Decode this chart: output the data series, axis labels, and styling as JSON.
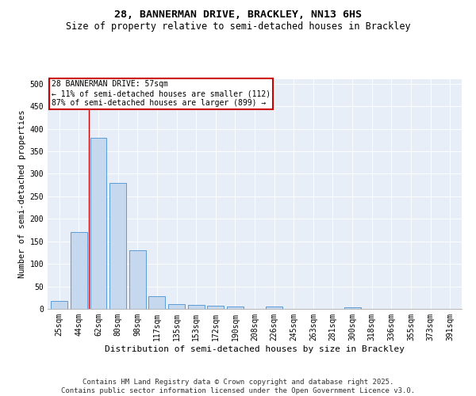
{
  "title": "28, BANNERMAN DRIVE, BRACKLEY, NN13 6HS",
  "subtitle": "Size of property relative to semi-detached houses in Brackley",
  "xlabel": "Distribution of semi-detached houses by size in Brackley",
  "ylabel": "Number of semi-detached properties",
  "categories": [
    "25sqm",
    "44sqm",
    "62sqm",
    "80sqm",
    "98sqm",
    "117sqm",
    "135sqm",
    "153sqm",
    "172sqm",
    "190sqm",
    "208sqm",
    "226sqm",
    "245sqm",
    "263sqm",
    "281sqm",
    "300sqm",
    "318sqm",
    "336sqm",
    "355sqm",
    "373sqm",
    "391sqm"
  ],
  "values": [
    17,
    170,
    380,
    280,
    130,
    28,
    10,
    9,
    7,
    6,
    0,
    6,
    0,
    0,
    0,
    3,
    0,
    0,
    0,
    0,
    0
  ],
  "bar_color": "#c5d8ed",
  "bar_edge_color": "#5b9bd5",
  "red_line_x": 1.5,
  "annotation_title": "28 BANNERMAN DRIVE: 57sqm",
  "annotation_line1": "← 11% of semi-detached houses are smaller (112)",
  "annotation_line2": "87% of semi-detached houses are larger (899) →",
  "annotation_box_facecolor": "#ffffff",
  "annotation_box_edgecolor": "#cc0000",
  "red_line_color": "#cc0000",
  "plot_bg_color": "#e8eef7",
  "fig_bg_color": "#ffffff",
  "ylim": [
    0,
    510
  ],
  "yticks": [
    0,
    50,
    100,
    150,
    200,
    250,
    300,
    350,
    400,
    450,
    500
  ],
  "title_fontsize": 9.5,
  "subtitle_fontsize": 8.5,
  "xlabel_fontsize": 8,
  "ylabel_fontsize": 7.5,
  "tick_fontsize": 7,
  "annot_fontsize": 7,
  "footer_fontsize": 6.5,
  "footer": "Contains HM Land Registry data © Crown copyright and database right 2025.\nContains public sector information licensed under the Open Government Licence v3.0."
}
